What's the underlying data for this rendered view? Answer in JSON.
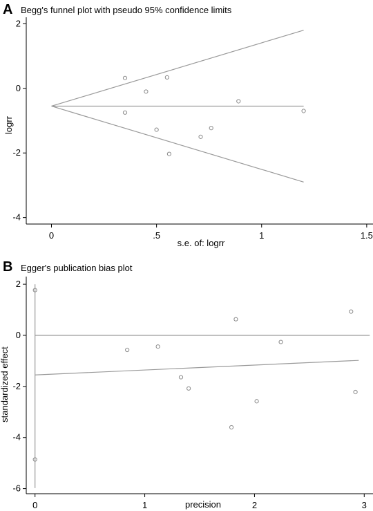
{
  "chart_data": [
    {
      "panel": "A",
      "type": "scatter",
      "title": "Begg's funnel plot with pseudo 95% confidence limits",
      "xlabel": "s.e. of: logrr",
      "ylabel": "logrr",
      "xlim": [
        -0.12,
        1.53
      ],
      "ylim": [
        -4.2,
        2.2
      ],
      "xticks": [
        0,
        0.5,
        1,
        1.5
      ],
      "xtick_labels": [
        "0",
        ".5",
        "1",
        "1.5"
      ],
      "yticks": [
        -4,
        -2,
        0,
        2
      ],
      "ytick_labels": [
        "-4",
        "-2",
        "0",
        "2"
      ],
      "points": [
        {
          "x": 0.35,
          "y": 0.32
        },
        {
          "x": 0.35,
          "y": -0.75
        },
        {
          "x": 0.45,
          "y": -0.1
        },
        {
          "x": 0.55,
          "y": 0.34
        },
        {
          "x": 0.5,
          "y": -1.28
        },
        {
          "x": 0.56,
          "y": -2.03
        },
        {
          "x": 0.71,
          "y": -1.5
        },
        {
          "x": 0.76,
          "y": -1.23
        },
        {
          "x": 0.89,
          "y": -0.4
        },
        {
          "x": 1.2,
          "y": -0.7
        }
      ],
      "pooled_estimate": -0.55,
      "limits": {
        "se_max": 1.2,
        "upper_at_max": 1.8,
        "lower_at_max": -2.9
      }
    },
    {
      "panel": "B",
      "type": "scatter",
      "title": "Egger's publication bias plot",
      "xlabel": "precision",
      "ylabel": "standardized effect",
      "xlim": [
        -0.08,
        3.08
      ],
      "ylim": [
        -6.2,
        2.3
      ],
      "xticks": [
        0,
        1,
        2,
        3
      ],
      "xtick_labels": [
        "0",
        "1",
        "2",
        "3"
      ],
      "yticks": [
        -6,
        -4,
        -2,
        0,
        2
      ],
      "ytick_labels": [
        "-6",
        "-4",
        "-2",
        "0",
        "2"
      ],
      "points": [
        {
          "x": 0.84,
          "y": -0.57
        },
        {
          "x": 1.12,
          "y": -0.44
        },
        {
          "x": 1.33,
          "y": -1.64
        },
        {
          "x": 1.4,
          "y": -2.08
        },
        {
          "x": 1.79,
          "y": -3.6
        },
        {
          "x": 1.83,
          "y": 0.63
        },
        {
          "x": 2.02,
          "y": -2.58
        },
        {
          "x": 2.24,
          "y": -0.26
        },
        {
          "x": 2.88,
          "y": 0.93
        },
        {
          "x": 2.92,
          "y": -2.22
        }
      ],
      "intercept_ci": {
        "x": 0,
        "upper": 1.77,
        "lower": -4.86,
        "bar_top": 2.0,
        "bar_bottom": -5.98
      },
      "regression_line": {
        "x0": 0,
        "y0": -1.55,
        "x1": 2.95,
        "y1": -0.98
      },
      "zero_line": 0
    }
  ]
}
